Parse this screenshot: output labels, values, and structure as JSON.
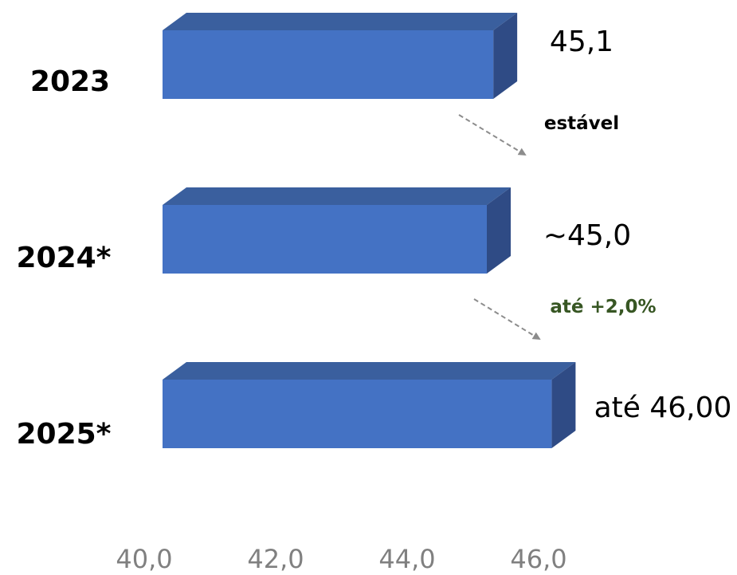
{
  "chart_data": {
    "type": "bar",
    "orientation": "horizontal",
    "categories": [
      "2023",
      "2024*",
      "2025*"
    ],
    "values": [
      45.1,
      45.0,
      46.0
    ],
    "value_labels": [
      "45,1",
      "~45,0",
      "até 46,00"
    ],
    "xlim": [
      40.0,
      47.0
    ],
    "x_ticks": [
      "40,0",
      "42,0",
      "44,0",
      "46,0"
    ],
    "grid": false,
    "legend": false,
    "bar_color": "#4472C4",
    "bar_top_color": "#3A5F9E",
    "bar_side_color": "#2F4B85",
    "annotations": [
      {
        "text": "estável",
        "from": "2023",
        "to": "2024*",
        "color": "#000000"
      },
      {
        "text": "até +2,0%",
        "from": "2024*",
        "to": "2025*",
        "color": "#375623"
      }
    ],
    "arrow_color": "#8C8C8C"
  }
}
